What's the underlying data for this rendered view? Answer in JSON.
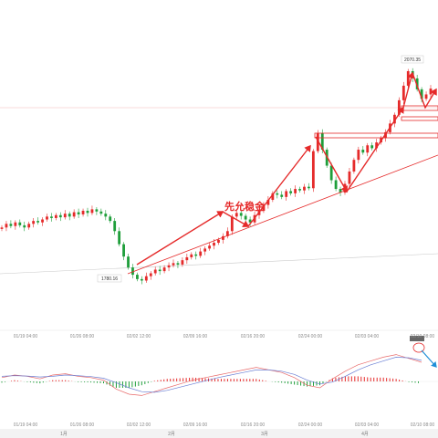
{
  "chart_data": {
    "type": "candlestick",
    "title": "",
    "xlabel": "",
    "ylabel": "",
    "price_labels": {
      "low": "1780.16",
      "high": "2070.35"
    },
    "low_value": 1780.16,
    "high_value": 2070.35,
    "annotation_text": "先允稳金",
    "x_ticks_upper": [
      "01/19 04:00",
      "01/26 08:00",
      "02/02 12:00",
      "02/09 16:00",
      "02/16 20:00",
      "02/24 00:00",
      "02/03 04:00",
      "02/10 08:00"
    ],
    "x_ticks_lower": [
      "01/19 04:00",
      "01/26 08:00",
      "02/02 12:00",
      "02/09 16:00",
      "02/16 20:00",
      "02/24 00:00",
      "02/03 04:00",
      "02/10 08:00"
    ],
    "month_bands": [
      "1月",
      "2月",
      "3月",
      "4月"
    ],
    "price_path": [
      1855,
      1860,
      1857,
      1862,
      1858,
      1855,
      1860,
      1864,
      1862,
      1866,
      1870,
      1868,
      1872,
      1869,
      1874,
      1870,
      1876,
      1873,
      1878,
      1875,
      1880,
      1877,
      1874,
      1870,
      1864,
      1850,
      1832,
      1815,
      1800,
      1790,
      1784,
      1782,
      1788,
      1792,
      1797,
      1795,
      1800,
      1803,
      1806,
      1804,
      1810,
      1814,
      1818,
      1816,
      1822,
      1826,
      1830,
      1834,
      1838,
      1843,
      1850,
      1870,
      1875,
      1871,
      1866,
      1862,
      1872,
      1878,
      1886,
      1893,
      1902,
      1900,
      1897,
      1905,
      1902,
      1908,
      1906,
      1911,
      1909,
      1960,
      1985,
      1962,
      1940,
      1920,
      1908,
      1903,
      1915,
      1932,
      1948,
      1962,
      1958,
      1968,
      1964,
      1972,
      1978,
      1986,
      1998,
      2010,
      2030,
      2050,
      2070,
      2060,
      2045,
      2032,
      2038,
      2046
    ],
    "macd": {
      "dif": [
        0.3,
        0.5,
        0.4,
        0.2,
        0.5,
        0.6,
        0.4,
        0.3,
        0.1,
        -0.6,
        -1.0,
        -1.1,
        -0.8,
        -0.5,
        -0.2,
        0.1,
        0.3,
        0.5,
        0.7,
        0.9,
        1.1,
        0.9,
        0.7,
        0.3,
        -0.3,
        -0.5,
        0.2,
        0.8,
        1.3,
        1.6,
        1.9,
        2.1,
        1.8,
        1.5
      ],
      "dea": [
        0.4,
        0.45,
        0.42,
        0.35,
        0.4,
        0.5,
        0.45,
        0.38,
        0.25,
        -0.1,
        -0.5,
        -0.8,
        -0.85,
        -0.7,
        -0.45,
        -0.2,
        0.05,
        0.3,
        0.5,
        0.7,
        0.9,
        0.9,
        0.8,
        0.55,
        0.1,
        -0.2,
        -0.05,
        0.4,
        0.9,
        1.3,
        1.6,
        1.9,
        1.85,
        1.65
      ],
      "hist": [
        -0.1,
        0.1,
        -0.05,
        -0.15,
        0.1,
        0.1,
        -0.05,
        -0.08,
        -0.15,
        -0.5,
        -0.5,
        -0.3,
        0.05,
        0.2,
        0.25,
        0.3,
        0.25,
        0.2,
        0.2,
        0.2,
        0.2,
        0.0,
        -0.1,
        -0.25,
        -0.4,
        -0.3,
        0.25,
        0.4,
        0.4,
        0.3,
        0.3,
        0.2,
        -0.05,
        -0.15
      ]
    },
    "colors": {
      "up": "#e52a2a",
      "down": "#1e9e3a",
      "dif": "#e86a6a",
      "dea": "#6a7fd4",
      "trend": "#e52a2a",
      "arrow": "#1f8fd8"
    }
  }
}
